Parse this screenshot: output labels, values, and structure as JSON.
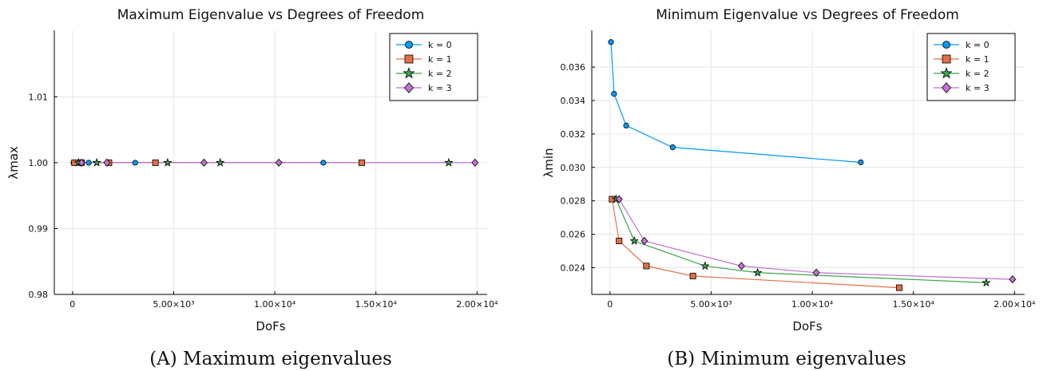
{
  "chart_data": [
    {
      "type": "line",
      "title": "Maximum Eigenvalue vs Degrees of Freedom",
      "xlabel": "DoFs",
      "ylabel": "λmax",
      "xlim": [
        -900,
        20500
      ],
      "ylim": [
        0.98,
        1.0201
      ],
      "xticks": [
        0,
        5000,
        10000,
        15000,
        20000
      ],
      "xtick_labels": [
        "0",
        "5.00×10³",
        "1.00×10⁴",
        "1.50×10⁴",
        "2.00×10⁴"
      ],
      "yticks": [
        0.98,
        0.99,
        1.0,
        1.01
      ],
      "ytick_labels": [
        "0.98",
        "0.99",
        "1.00",
        "1.01"
      ],
      "grid": true,
      "legend": "top-right",
      "caption": "(A) Maximum eigenvalues",
      "series": [
        {
          "name": "k = 0",
          "color": "#009AFA",
          "marker": "circle",
          "x": [
            50,
            200,
            800,
            3100,
            12400
          ],
          "y": [
            1.0,
            1.0,
            1.0,
            1.0,
            1.0
          ]
        },
        {
          "name": "k = 1",
          "color": "#E36F47",
          "marker": "square",
          "x": [
            100,
            450,
            1800,
            4100,
            14300
          ],
          "y": [
            1.0,
            1.0,
            1.0,
            1.0,
            1.0
          ]
        },
        {
          "name": "k = 2",
          "color": "#3EA44E",
          "marker": "star",
          "x": [
            300,
            1200,
            4700,
            7300,
            18600
          ],
          "y": [
            1.0,
            1.0,
            1.0,
            1.0,
            1.0
          ]
        },
        {
          "name": "k = 3",
          "color": "#C371D2",
          "marker": "diamond",
          "x": [
            450,
            1700,
            6500,
            10200,
            19900
          ],
          "y": [
            1.0,
            1.0,
            1.0,
            1.0,
            1.0
          ]
        }
      ]
    },
    {
      "type": "line",
      "title": "Minimum Eigenvalue vs Degrees of Freedom",
      "xlabel": "DoFs",
      "ylabel": "λmin",
      "xlim": [
        -900,
        20500
      ],
      "ylim": [
        0.0224,
        0.0382
      ],
      "xticks": [
        0,
        5000,
        10000,
        15000,
        20000
      ],
      "xtick_labels": [
        "0",
        "5.00×10³",
        "1.00×10⁴",
        "1.50×10⁴",
        "2.00×10⁴"
      ],
      "yticks": [
        0.024,
        0.026,
        0.028,
        0.03,
        0.032,
        0.034,
        0.036
      ],
      "ytick_labels": [
        "0.024",
        "0.026",
        "0.028",
        "0.030",
        "0.032",
        "0.034",
        "0.036"
      ],
      "grid": true,
      "legend": "top-right",
      "caption": "(B) Minimum eigenvalues",
      "series": [
        {
          "name": "k = 0",
          "color": "#009AFA",
          "marker": "circle",
          "x": [
            50,
            200,
            800,
            3100,
            12400
          ],
          "y": [
            0.0375,
            0.0344,
            0.0325,
            0.0312,
            0.0303
          ]
        },
        {
          "name": "k = 1",
          "color": "#E36F47",
          "marker": "square",
          "x": [
            100,
            450,
            1800,
            4100,
            14300
          ],
          "y": [
            0.0281,
            0.0256,
            0.0241,
            0.0235,
            0.0228
          ]
        },
        {
          "name": "k = 2",
          "color": "#3EA44E",
          "marker": "star",
          "x": [
            300,
            1200,
            4700,
            7300,
            18600
          ],
          "y": [
            0.0281,
            0.0256,
            0.0241,
            0.0237,
            0.0231
          ]
        },
        {
          "name": "k = 3",
          "color": "#C371D2",
          "marker": "diamond",
          "x": [
            450,
            1700,
            6500,
            10200,
            19900
          ],
          "y": [
            0.0281,
            0.0256,
            0.0241,
            0.0237,
            0.0233
          ]
        }
      ]
    }
  ]
}
